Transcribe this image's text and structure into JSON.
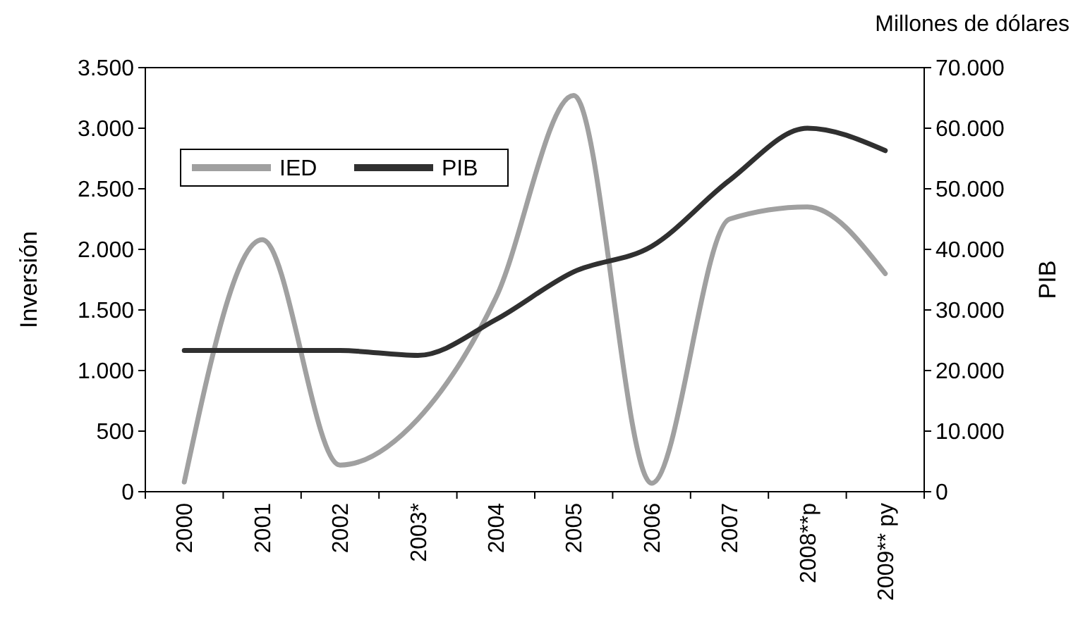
{
  "chart_data": {
    "type": "line",
    "categories": [
      "2000",
      "2001",
      "2002",
      "2003*",
      "2004",
      "2005",
      "2006",
      "2007",
      "2008**p",
      "2009** py"
    ],
    "series": [
      {
        "name": "IED",
        "color": "#a0a0a0",
        "values": [
          80,
          2080,
          220,
          600,
          1600,
          3270,
          70,
          2250,
          2350,
          1800
        ]
      },
      {
        "name": "PIB",
        "color": "#303030",
        "axis": "y2",
        "values": [
          23300,
          23300,
          23300,
          22500,
          28400,
          36300,
          40500,
          51400,
          60000,
          56300
        ]
      }
    ],
    "ylabel": "Inversión",
    "y2label": "PIB",
    "annotations": [
      "Millones de dólares"
    ],
    "ylim": [
      0,
      3500
    ],
    "yticks": [
      {
        "value": 0,
        "label": "0"
      },
      {
        "value": 500,
        "label": "500"
      },
      {
        "value": 1000,
        "label": "1.000"
      },
      {
        "value": 1500,
        "label": "1.500"
      },
      {
        "value": 2000,
        "label": "2.000"
      },
      {
        "value": 2500,
        "label": "2.500"
      },
      {
        "value": 3000,
        "label": "3.000"
      },
      {
        "value": 3500,
        "label": "3.500"
      }
    ],
    "y2lim": [
      0,
      70000
    ],
    "y2ticks": [
      {
        "value": 0,
        "label": "0"
      },
      {
        "value": 10000,
        "label": "10.000"
      },
      {
        "value": 20000,
        "label": "20.000"
      },
      {
        "value": 30000,
        "label": "30.000"
      },
      {
        "value": 40000,
        "label": "40.000"
      },
      {
        "value": 50000,
        "label": "50.000"
      },
      {
        "value": 60000,
        "label": "60.000"
      },
      {
        "value": 70000,
        "label": "70.000"
      }
    ],
    "legend": "top left",
    "grid": false,
    "marker": "none",
    "line_style": "solid"
  }
}
